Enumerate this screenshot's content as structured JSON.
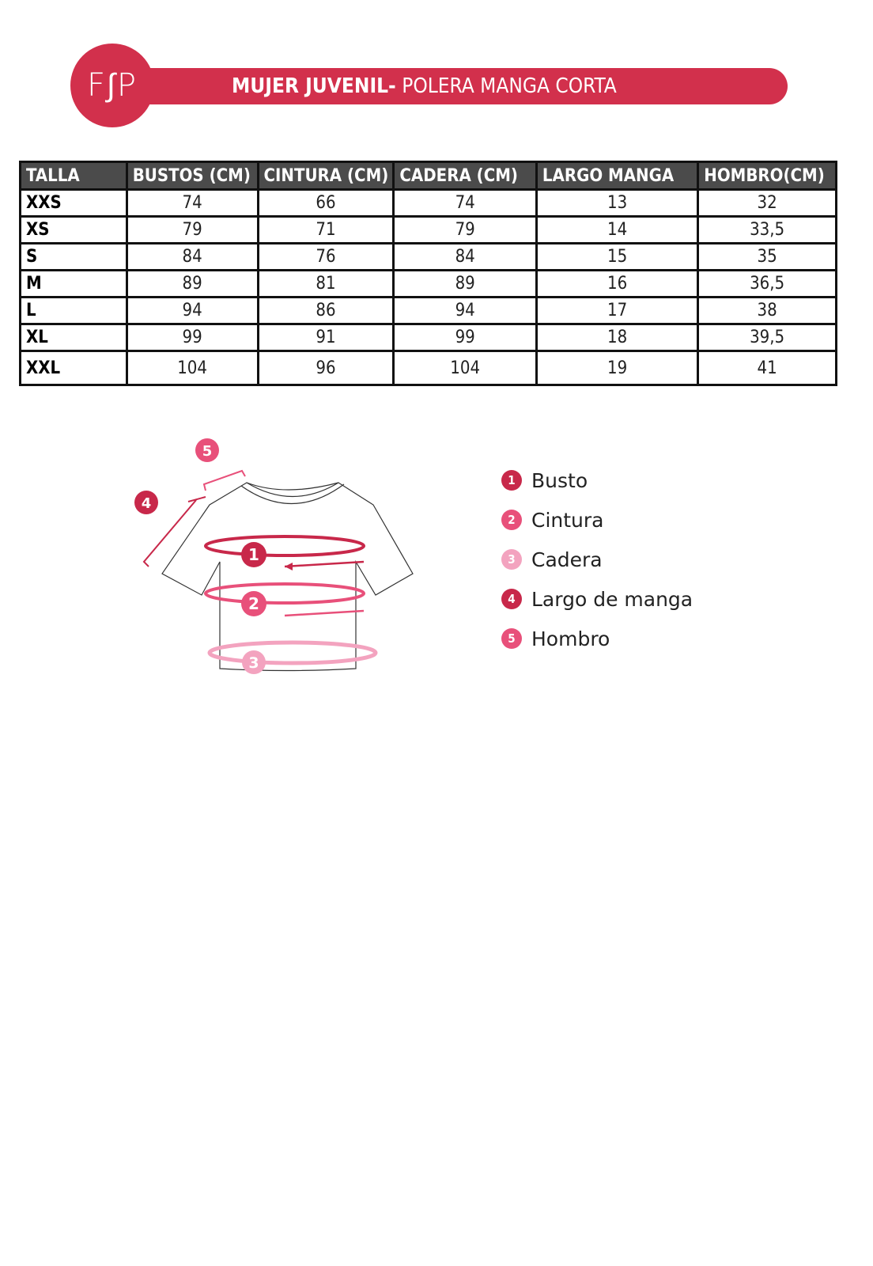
{
  "colors": {
    "brand": "#d2304c",
    "header_bg": "#4b4b4b",
    "m1": "#c8284a",
    "m2": "#e8507a",
    "m3": "#f3a3bf"
  },
  "header": {
    "logo_text": "F∫P",
    "title_bold": "MUJER JUVENIL-",
    "title_regular": " POLERA MANGA CORTA"
  },
  "table": {
    "columns": [
      "TALLA",
      "BUSTOS (CM)",
      "CINTURA (CM)",
      "CADERA (CM)",
      "LARGO MANGA",
      "HOMBRO(CM)"
    ],
    "rows": [
      [
        "XXS",
        "74",
        "66",
        "74",
        "13",
        "32"
      ],
      [
        "XS",
        "79",
        "71",
        "79",
        "14",
        "33,5"
      ],
      [
        "S",
        "84",
        "76",
        "84",
        "15",
        "35"
      ],
      [
        "M",
        "89",
        "81",
        "89",
        "16",
        "36,5"
      ],
      [
        "L",
        "94",
        "86",
        "94",
        "17",
        "38"
      ],
      [
        "XL",
        "99",
        "91",
        "99",
        "18",
        "39,5"
      ],
      [
        "XXL",
        "104",
        "96",
        "104",
        "19",
        "41"
      ]
    ]
  },
  "legend": [
    {
      "num": "1",
      "label": "Busto",
      "color": "#c8284a"
    },
    {
      "num": "2",
      "label": "Cintura",
      "color": "#e8507a"
    },
    {
      "num": "3",
      "label": "Cadera",
      "color": "#f3a3bf"
    },
    {
      "num": "4",
      "label": "Largo de manga",
      "color": "#c8284a"
    },
    {
      "num": "5",
      "label": "Hombro",
      "color": "#e8507a"
    }
  ]
}
